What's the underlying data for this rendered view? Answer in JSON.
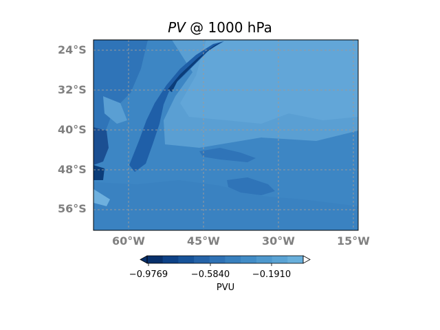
{
  "title": {
    "var": "PV",
    "rest": " @ 1000 hPa"
  },
  "map": {
    "lat_labels": [
      "24°S",
      "32°S",
      "40°S",
      "48°S",
      "56°S"
    ],
    "lon_labels": [
      "60°W",
      "45°W",
      "30°W",
      "15°W"
    ],
    "colors": {
      "deep": "#0b3d7a",
      "dark": "#1f5fa8",
      "mid": "#2f74b8",
      "base": "#3d86c4",
      "light": "#5a9fd3",
      "lighter": "#6eb0de"
    }
  },
  "colorbar": {
    "ticks": [
      "−0.9769",
      "−0.5840",
      "−0.1910"
    ],
    "label": "PVU",
    "colors": [
      "#08306b",
      "#0e4287",
      "#175399",
      "#2563a8",
      "#2f72b5",
      "#3880be",
      "#428cc6",
      "#4e98cd",
      "#5aa3d4",
      "#68afdb"
    ]
  },
  "chart_data": {
    "type": "heatmap",
    "title": "PV @ 1000 hPa",
    "variable": "PV",
    "level": "1000 hPa",
    "units": "PVU",
    "lat_ticks": [
      "24°S",
      "32°S",
      "40°S",
      "48°S",
      "56°S"
    ],
    "lon_ticks": [
      "60°W",
      "45°W",
      "30°W",
      "15°W"
    ],
    "colorbar_ticks": [
      -0.9769,
      -0.584,
      -0.191
    ],
    "grid": true
  }
}
